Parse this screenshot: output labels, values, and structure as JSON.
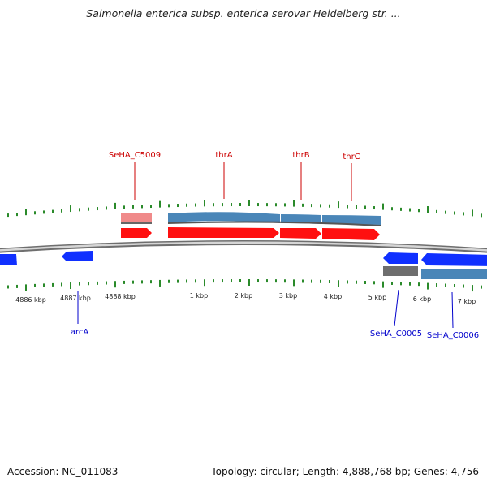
{
  "header": {
    "title": "Salmonella enterica subsp. enterica serovar Heidelberg str. ..."
  },
  "footer": {
    "accession": "Accession: NC_011083",
    "summary": "Topology: circular; Length: 4,888,768 bp; Genes: 4,756"
  },
  "colors": {
    "forward_gene": "#ff1010",
    "forward_cds": "#4a86b8",
    "reverse_gene": "#1030ff",
    "reverse_cds": "#4a86b8",
    "pseudo": "#f08888",
    "gray_feature": "#6e6e6e",
    "tick": "#2a8a2a",
    "forward_label": "#cc0000",
    "reverse_label": "#0000cc",
    "backbone": "#777777"
  },
  "scale": {
    "labels": [
      "4886 kbp",
      "4887 kbp",
      "4888 kbp",
      "1 kbp",
      "2 kbp",
      "3 kbp",
      "4 kbp",
      "5 kbp",
      "6 kbp",
      "7 kbp"
    ]
  },
  "genes": {
    "forward": [
      {
        "name": "SeHA_C5009",
        "type": "pseudo"
      },
      {
        "name": "thrA",
        "type": "gene"
      },
      {
        "name": "thrB",
        "type": "gene"
      },
      {
        "name": "thrC",
        "type": "gene"
      }
    ],
    "reverse": [
      {
        "name": "arcA",
        "type": "gene"
      },
      {
        "name": "SeHA_C0005",
        "type": "gene"
      },
      {
        "name": "SeHA_C0006",
        "type": "gene"
      }
    ]
  }
}
